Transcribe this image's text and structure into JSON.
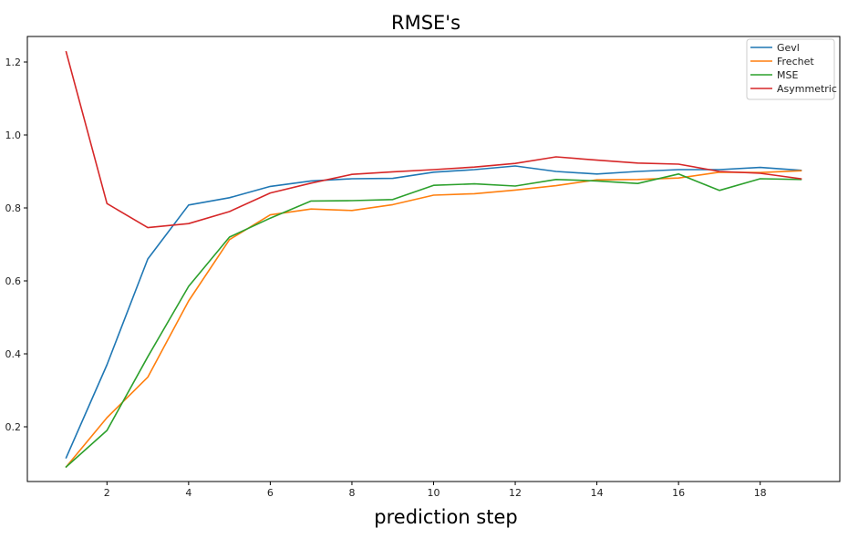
{
  "chart_data": {
    "type": "line",
    "title": "RMSE's",
    "xlabel": "prediction step",
    "ylabel": "",
    "xlim": [
      0.05,
      19.95
    ],
    "ylim": [
      0.05,
      1.27
    ],
    "xticks": [
      2,
      4,
      6,
      8,
      10,
      12,
      14,
      16,
      18
    ],
    "yticks": [
      0.2,
      0.4,
      0.6,
      0.8,
      1.0,
      1.2
    ],
    "ytick_labels": [
      "0.2",
      "0.4",
      "0.6",
      "0.8",
      "1.0",
      "1.2"
    ],
    "grid": false,
    "legend_position": "top-right",
    "x": [
      1,
      2,
      3,
      4,
      5,
      6,
      7,
      8,
      9,
      10,
      11,
      12,
      13,
      14,
      15,
      16,
      17,
      18,
      19
    ],
    "series": [
      {
        "name": "Gevl",
        "color": "#1f77b4",
        "values": [
          0.115,
          0.37,
          0.66,
          0.808,
          0.828,
          0.859,
          0.874,
          0.88,
          0.881,
          0.898,
          0.905,
          0.915,
          0.9,
          0.893,
          0.9,
          0.905,
          0.905,
          0.911,
          0.903
        ]
      },
      {
        "name": "Frechet",
        "color": "#ff7f0e",
        "values": [
          0.09,
          0.225,
          0.336,
          0.545,
          0.713,
          0.781,
          0.797,
          0.793,
          0.809,
          0.835,
          0.839,
          0.849,
          0.861,
          0.877,
          0.878,
          0.882,
          0.898,
          0.897,
          0.902
        ]
      },
      {
        "name": "MSE",
        "color": "#2ca02c",
        "values": [
          0.09,
          0.19,
          0.392,
          0.585,
          0.72,
          0.772,
          0.819,
          0.82,
          0.823,
          0.862,
          0.866,
          0.86,
          0.878,
          0.874,
          0.867,
          0.893,
          0.848,
          0.88,
          0.878
        ]
      },
      {
        "name": "Asymmetric",
        "color": "#d62728",
        "values": [
          1.228,
          0.812,
          0.746,
          0.757,
          0.79,
          0.841,
          0.868,
          0.892,
          0.899,
          0.905,
          0.912,
          0.922,
          0.94,
          0.931,
          0.923,
          0.92,
          0.9,
          0.895,
          0.88
        ]
      }
    ]
  }
}
